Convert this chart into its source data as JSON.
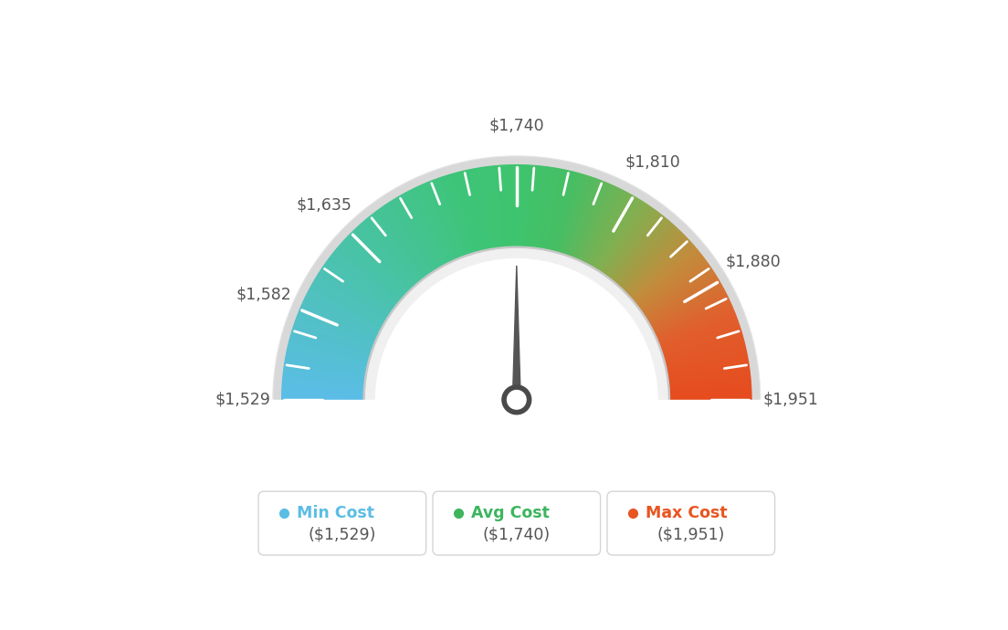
{
  "min_val": 1529,
  "max_val": 1951,
  "avg_val": 1740,
  "tick_labels": [
    "$1,529",
    "$1,582",
    "$1,635",
    "$1,740",
    "$1,810",
    "$1,880",
    "$1,951"
  ],
  "tick_values": [
    1529,
    1582,
    1635,
    1740,
    1810,
    1880,
    1951
  ],
  "legend_items": [
    {
      "label": "Min Cost",
      "value": "($1,529)",
      "color": "#5bbde4"
    },
    {
      "label": "Avg Cost",
      "value": "($1,740)",
      "color": "#3cb55e"
    },
    {
      "label": "Max Cost",
      "value": "($1,951)",
      "color": "#e85520"
    }
  ],
  "background_color": "#ffffff",
  "needle_color": "#555555",
  "color_stops": [
    [
      0.0,
      [
        91,
        189,
        232
      ]
    ],
    [
      0.25,
      [
        72,
        195,
        164
      ]
    ],
    [
      0.42,
      [
        62,
        196,
        120
      ]
    ],
    [
      0.5,
      [
        62,
        196,
        110
      ]
    ],
    [
      0.58,
      [
        70,
        190,
        100
      ]
    ],
    [
      0.68,
      [
        130,
        175,
        80
      ]
    ],
    [
      0.78,
      [
        195,
        140,
        60
      ]
    ],
    [
      0.88,
      [
        225,
        95,
        45
      ]
    ],
    [
      1.0,
      [
        230,
        75,
        30
      ]
    ]
  ]
}
